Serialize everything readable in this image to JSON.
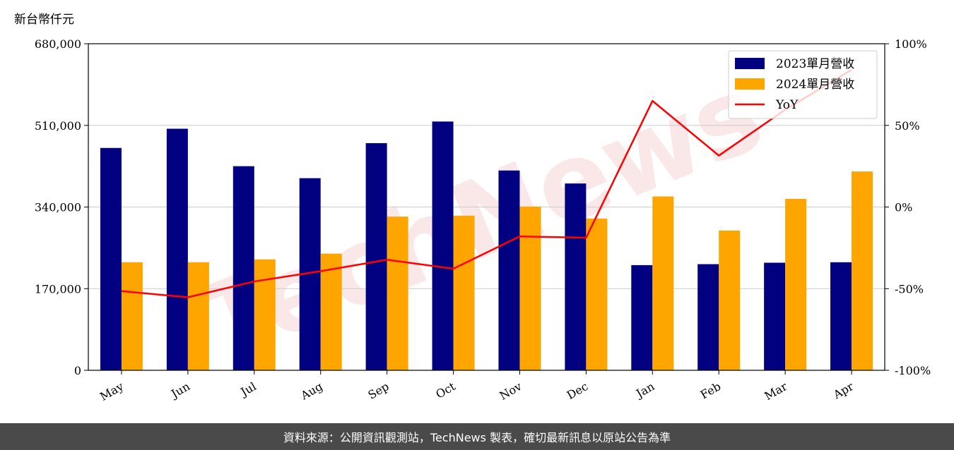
{
  "chart_data": {
    "type": "bar",
    "y_unit_label": "新台幣仟元",
    "categories": [
      "May",
      "Jun",
      "Jul",
      "Aug",
      "Sep",
      "Oct",
      "Nov",
      "Dec",
      "Jan",
      "Feb",
      "Mar",
      "Apr"
    ],
    "series": [
      {
        "name": "2023單月營收",
        "kind": "bar",
        "axis": "left",
        "color": "#000080",
        "values": [
          463000,
          503000,
          425000,
          400000,
          473000,
          518000,
          416000,
          389000,
          219000,
          221000,
          224000,
          225000
        ]
      },
      {
        "name": "2024單月營收",
        "kind": "bar",
        "axis": "left",
        "color": "#FFA500",
        "values": [
          225000,
          225000,
          231000,
          243000,
          320000,
          322000,
          341000,
          316000,
          362000,
          291000,
          357000,
          414000
        ]
      },
      {
        "name": "YoY",
        "kind": "line",
        "axis": "right",
        "color": "#FF0000",
        "values": [
          -51.5,
          -55.3,
          -45.6,
          -39.3,
          -32.3,
          -37.8,
          -18.0,
          -18.8,
          65.0,
          31.5,
          59.6,
          84.0
        ]
      }
    ],
    "ylim_left": [
      0,
      680000
    ],
    "yticks_left": [
      "0",
      "170,000",
      "340,000",
      "510,000",
      "680,000"
    ],
    "ylim_right": [
      -100,
      100
    ],
    "yticks_right": [
      "-100%",
      "-50%",
      "0%",
      "50%",
      "100%"
    ],
    "grid": "horizontal",
    "legend_position": "top-right",
    "watermark": "TechNews"
  },
  "footer": {
    "source_text": "資料來源：公開資訊觀測站，TechNews 製表，確切最新訊息以原站公告為準"
  }
}
